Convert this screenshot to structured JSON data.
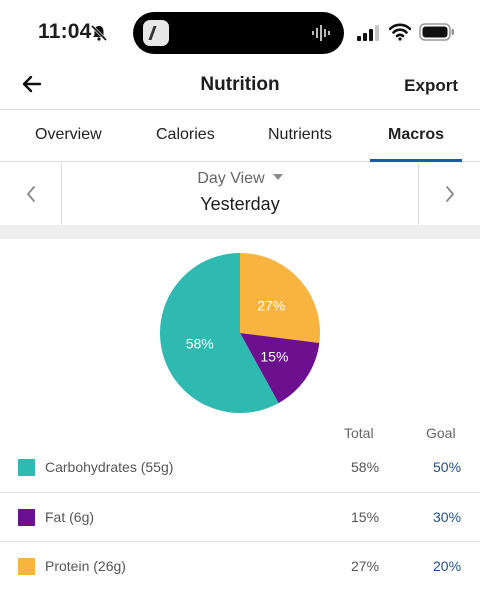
{
  "status_bar": {
    "time": "11:04",
    "icons": [
      "bell-slash-icon",
      "signal-icon",
      "wifi-icon",
      "battery-icon"
    ]
  },
  "nav": {
    "title": "Nutrition",
    "export_label": "Export",
    "back_icon": "arrow-left-icon"
  },
  "tabs": [
    {
      "label": "Overview",
      "active": false
    },
    {
      "label": "Calories",
      "active": false
    },
    {
      "label": "Nutrients",
      "active": false
    },
    {
      "label": "Macros",
      "active": true
    }
  ],
  "date_selector": {
    "view_label": "Day View",
    "date": "Yesterday"
  },
  "chart_data": {
    "type": "pie",
    "categories": [
      "Carbohydrates",
      "Fat",
      "Protein"
    ],
    "values": [
      58,
      15,
      27
    ],
    "labels": [
      "58%",
      "15%",
      "27%"
    ],
    "colors": [
      "#2ebab0",
      "#6d1090",
      "#f9b43f"
    ]
  },
  "table": {
    "headers": {
      "total": "Total",
      "goal": "Goal"
    },
    "rows": [
      {
        "label": "Carbohydrates (55g)",
        "total": "58%",
        "goal": "50%",
        "color": "#2ebab0"
      },
      {
        "label": "Fat (6g)",
        "total": "15%",
        "goal": "30%",
        "color": "#6d1090"
      },
      {
        "label": "Protein (26g)",
        "total": "27%",
        "goal": "20%",
        "color": "#f9b43f"
      }
    ]
  }
}
